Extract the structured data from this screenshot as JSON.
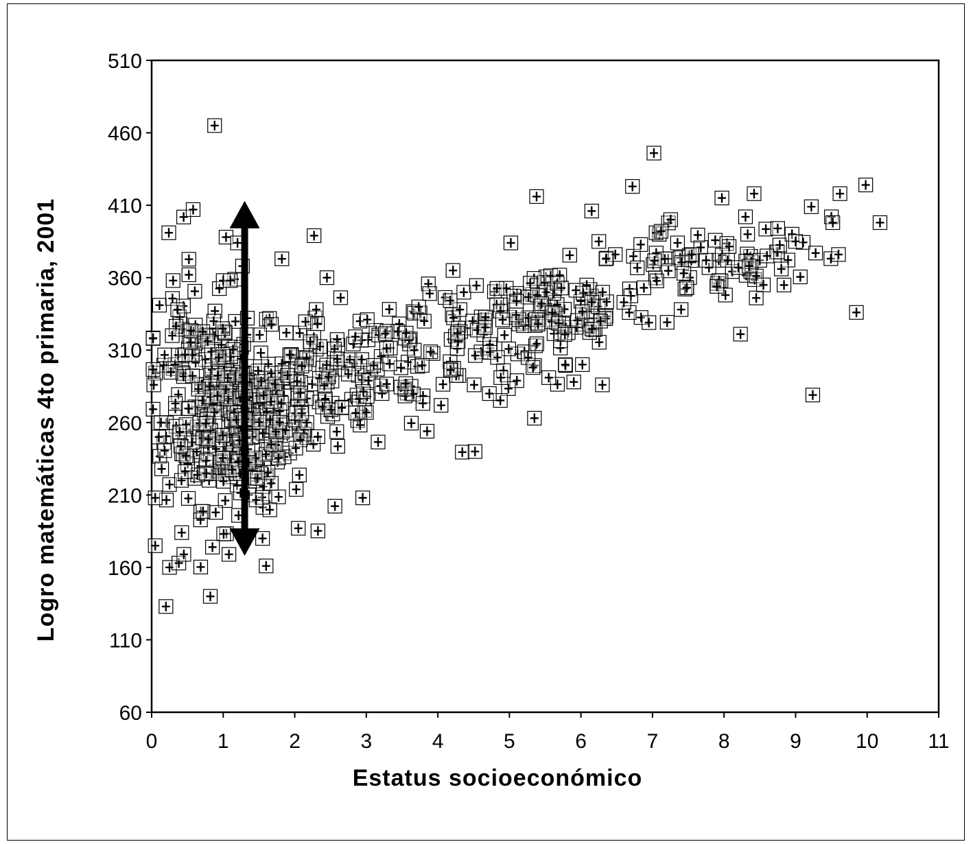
{
  "chart_data": {
    "type": "scatter",
    "title": "",
    "xlabel": "Estatus socioeconómico",
    "ylabel": "Logro matemáticas 4to primaria, 2001",
    "xlim": [
      0,
      11
    ],
    "ylim": [
      60,
      510
    ],
    "x_ticks": [
      0,
      1,
      2,
      3,
      4,
      5,
      6,
      7,
      8,
      9,
      10,
      11
    ],
    "y_ticks": [
      60,
      110,
      160,
      210,
      260,
      310,
      360,
      410,
      460,
      510
    ],
    "grid": false,
    "legend": "none",
    "marker": "plus-in-square",
    "colors": {
      "marker": "#000000",
      "axis": "#000000",
      "background": "#ffffff"
    },
    "annotations": [
      {
        "type": "double-arrow",
        "x": 1.3,
        "y_from": 168,
        "y_to": 413
      }
    ],
    "outliers": [
      [
        0.88,
        465
      ],
      [
        0.58,
        407
      ],
      [
        0.24,
        391
      ],
      [
        1.04,
        388
      ],
      [
        2.27,
        389
      ],
      [
        1.2,
        384
      ],
      [
        1.27,
        368
      ],
      [
        1.82,
        373
      ],
      [
        2.45,
        360
      ],
      [
        1.0,
        358
      ],
      [
        1.1,
        358
      ],
      [
        0.52,
        362
      ],
      [
        0.3,
        358
      ],
      [
        0.03,
        286
      ],
      [
        0.05,
        208
      ],
      [
        0.05,
        175
      ],
      [
        0.13,
        260
      ],
      [
        0.1,
        250
      ],
      [
        0.14,
        228
      ],
      [
        0.2,
        133
      ],
      [
        0.25,
        160
      ],
      [
        0.38,
        163
      ],
      [
        0.45,
        169
      ],
      [
        0.42,
        184
      ],
      [
        0.82,
        140
      ],
      [
        0.85,
        174
      ],
      [
        1.08,
        169
      ],
      [
        1.55,
        180
      ],
      [
        1.6,
        161
      ],
      [
        2.95,
        208
      ],
      [
        2.05,
        187
      ],
      [
        3.85,
        254
      ],
      [
        4.52,
        240
      ],
      [
        4.72,
        280
      ],
      [
        4.88,
        291
      ],
      [
        5.35,
        263
      ],
      [
        5.33,
        298
      ],
      [
        5.55,
        291
      ],
      [
        5.78,
        300
      ],
      [
        5.9,
        288
      ],
      [
        6.02,
        300
      ],
      [
        6.3,
        286
      ],
      [
        7.02,
        446
      ],
      [
        6.72,
        423
      ],
      [
        5.38,
        416
      ],
      [
        6.15,
        406
      ],
      [
        5.02,
        384
      ],
      [
        6.25,
        385
      ],
      [
        7.05,
        391
      ],
      [
        7.12,
        392
      ],
      [
        7.97,
        415
      ],
      [
        8.42,
        418
      ],
      [
        8.3,
        402
      ],
      [
        8.33,
        390
      ],
      [
        8.75,
        394
      ],
      [
        8.95,
        390
      ],
      [
        9.22,
        409
      ],
      [
        9.28,
        377
      ],
      [
        9.5,
        402
      ],
      [
        9.52,
        398
      ],
      [
        9.62,
        418
      ],
      [
        9.6,
        376
      ],
      [
        9.98,
        424
      ],
      [
        10.18,
        398
      ],
      [
        9.85,
        336
      ],
      [
        9.24,
        279
      ],
      [
        8.23,
        321
      ],
      [
        6.95,
        329
      ],
      [
        6.88,
        353
      ],
      [
        7.4,
        338
      ],
      [
        7.48,
        353
      ],
      [
        8.02,
        348
      ],
      [
        7.93,
        358
      ],
      [
        8.45,
        346
      ],
      [
        8.55,
        355
      ],
      [
        8.8,
        366
      ],
      [
        7.75,
        372
      ],
      [
        8.05,
        372
      ],
      [
        8.38,
        371
      ],
      [
        8.5,
        372
      ],
      [
        8.6,
        375
      ],
      [
        9.0,
        385
      ],
      [
        6.6,
        343
      ],
      [
        6.48,
        376
      ],
      [
        6.35,
        373
      ],
      [
        7.35,
        384
      ],
      [
        7.55,
        376
      ],
      [
        7.9,
        354
      ],
      [
        8.2,
        367
      ],
      [
        8.35,
        368
      ]
    ],
    "clusters": [
      {
        "cx": 1.2,
        "cy": 262,
        "sx": 0.5,
        "sy": 30,
        "n": 340
      },
      {
        "cx": 0.6,
        "cy": 320,
        "sx": 0.35,
        "sy": 25,
        "n": 45
      },
      {
        "cx": 2.5,
        "cy": 285,
        "sx": 0.45,
        "sy": 25,
        "n": 80
      },
      {
        "cx": 3.6,
        "cy": 308,
        "sx": 0.45,
        "sy": 20,
        "n": 55
      },
      {
        "cx": 4.6,
        "cy": 320,
        "sx": 0.45,
        "sy": 20,
        "n": 55
      },
      {
        "cx": 5.5,
        "cy": 332,
        "sx": 0.4,
        "sy": 18,
        "n": 55
      },
      {
        "cx": 6.2,
        "cy": 340,
        "sx": 0.3,
        "sy": 12,
        "n": 25
      },
      {
        "cx": 7.3,
        "cy": 372,
        "sx": 0.5,
        "sy": 15,
        "n": 30
      },
      {
        "cx": 8.3,
        "cy": 372,
        "sx": 0.5,
        "sy": 12,
        "n": 25
      }
    ]
  }
}
